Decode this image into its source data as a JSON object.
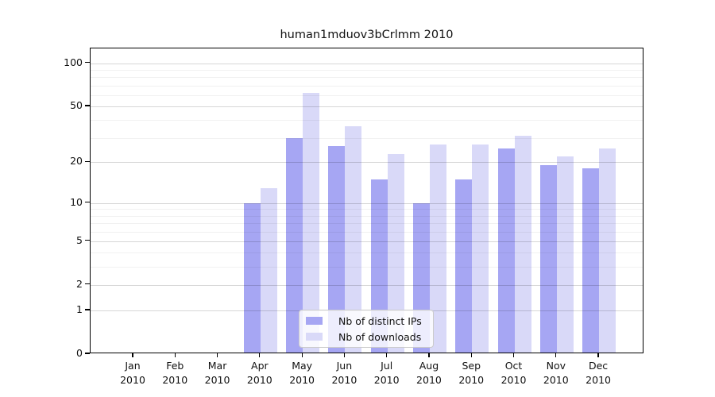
{
  "title": "human1mduov3bCrlmm 2010",
  "chart_data": {
    "type": "bar",
    "categories": [
      "Jan",
      "Feb",
      "Mar",
      "Apr",
      "May",
      "Jun",
      "Jul",
      "Aug",
      "Sep",
      "Oct",
      "Nov",
      "Dec"
    ],
    "category_year": "2010",
    "series": [
      {
        "name": "Nb of distinct IPs",
        "color": "#a6a6f3",
        "values": [
          0,
          0,
          0,
          10,
          30,
          26,
          15,
          10,
          15,
          25,
          19,
          18
        ]
      },
      {
        "name": "Nb of downloads",
        "color": "#d9d9f8",
        "values": [
          0,
          0,
          0,
          13,
          62,
          36,
          23,
          27,
          27,
          31,
          22,
          25
        ]
      }
    ],
    "yscale": "log1p",
    "yticks": [
      0,
      1,
      2,
      5,
      10,
      20,
      50,
      100
    ],
    "yticks_minor": [
      3,
      4,
      6,
      7,
      8,
      9,
      30,
      40,
      60,
      70,
      80,
      90
    ],
    "ylim": [
      0,
      127
    ],
    "xlabel": "",
    "ylabel": "",
    "grid": true,
    "legend_position": "lower-center"
  }
}
